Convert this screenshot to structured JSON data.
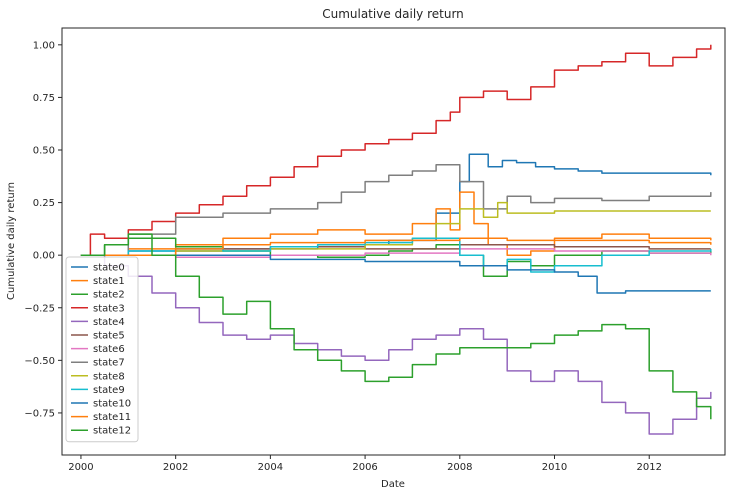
{
  "chart_data": {
    "type": "line",
    "title": "Cumulative daily return",
    "xlabel": "Date",
    "ylabel": "Cumulative daily return",
    "xlim": [
      1999.6,
      2013.6
    ],
    "ylim": [
      -0.95,
      1.08
    ],
    "xticks": [
      2000,
      2002,
      2004,
      2006,
      2008,
      2010,
      2012
    ],
    "xtick_labels": [
      "2000",
      "2002",
      "2004",
      "2006",
      "2008",
      "2010",
      "2012"
    ],
    "yticks": [
      -0.75,
      -0.5,
      -0.25,
      0.0,
      0.25,
      0.5,
      0.75,
      1.0
    ],
    "ytick_labels": [
      "−0.75",
      "−0.50",
      "−0.25",
      "0.00",
      "0.25",
      "0.50",
      "0.75",
      "1.00"
    ],
    "grid": false,
    "legend_position": "lower-left",
    "series": [
      {
        "name": "state0",
        "color": "#1f77b4",
        "x": [
          2000.0,
          2001.0,
          2003.0,
          2005.0,
          2006.5,
          2007.5,
          2008.0,
          2008.2,
          2008.6,
          2008.9,
          2009.2,
          2009.6,
          2010.0,
          2010.5,
          2011.0,
          2012.0,
          2013.3
        ],
        "y": [
          0.0,
          0.02,
          0.03,
          0.05,
          0.07,
          0.2,
          0.35,
          0.48,
          0.42,
          0.45,
          0.44,
          0.42,
          0.41,
          0.4,
          0.39,
          0.39,
          0.38
        ]
      },
      {
        "name": "state1",
        "color": "#ff7f0e",
        "x": [
          2000.0,
          2001.0,
          2002.0,
          2003.0,
          2004.0,
          2005.0,
          2006.0,
          2007.0,
          2007.5,
          2007.8,
          2008.0,
          2008.3,
          2008.6,
          2009.0,
          2009.5,
          2010.0,
          2011.0,
          2012.0,
          2013.3
        ],
        "y": [
          0.0,
          0.03,
          0.05,
          0.08,
          0.1,
          0.12,
          0.1,
          0.15,
          0.22,
          0.12,
          0.3,
          0.15,
          0.05,
          0.0,
          0.02,
          0.08,
          0.1,
          0.08,
          0.07
        ]
      },
      {
        "name": "state2",
        "color": "#2ca02c",
        "x": [
          2000.0,
          2000.5,
          2001.0,
          2002.0,
          2003.0,
          2004.0,
          2005.0,
          2006.0,
          2006.5,
          2007.0,
          2007.5,
          2008.0,
          2008.5,
          2009.0,
          2009.5,
          2010.0,
          2011.0,
          2012.0,
          2013.3
        ],
        "y": [
          0.0,
          0.05,
          0.08,
          0.04,
          0.02,
          0.0,
          -0.01,
          0.0,
          0.02,
          0.03,
          0.05,
          0.0,
          -0.1,
          -0.03,
          -0.05,
          0.0,
          0.02,
          0.01,
          0.02
        ]
      },
      {
        "name": "state3",
        "color": "#d62728",
        "x": [
          2000.0,
          2000.2,
          2000.5,
          2001.0,
          2001.5,
          2002.0,
          2002.5,
          2003.0,
          2003.5,
          2004.0,
          2004.5,
          2005.0,
          2005.5,
          2006.0,
          2006.5,
          2007.0,
          2007.5,
          2007.8,
          2008.0,
          2008.5,
          2009.0,
          2009.5,
          2010.0,
          2010.5,
          2011.0,
          2011.5,
          2012.0,
          2012.5,
          2013.0,
          2013.3
        ],
        "y": [
          0.0,
          0.1,
          0.08,
          0.12,
          0.16,
          0.2,
          0.24,
          0.28,
          0.33,
          0.37,
          0.42,
          0.47,
          0.5,
          0.53,
          0.55,
          0.58,
          0.64,
          0.68,
          0.75,
          0.78,
          0.74,
          0.8,
          0.88,
          0.9,
          0.92,
          0.96,
          0.9,
          0.94,
          0.98,
          1.0
        ]
      },
      {
        "name": "state4",
        "color": "#9467bd",
        "x": [
          2000.0,
          2000.5,
          2001.0,
          2001.5,
          2002.0,
          2002.5,
          2003.0,
          2003.5,
          2004.0,
          2004.5,
          2005.0,
          2005.5,
          2006.0,
          2006.5,
          2007.0,
          2007.5,
          2008.0,
          2008.5,
          2009.0,
          2009.5,
          2010.0,
          2010.5,
          2011.0,
          2011.5,
          2012.0,
          2012.5,
          2013.0,
          2013.3
        ],
        "y": [
          0.0,
          -0.05,
          -0.1,
          -0.18,
          -0.25,
          -0.32,
          -0.38,
          -0.4,
          -0.38,
          -0.42,
          -0.45,
          -0.48,
          -0.5,
          -0.45,
          -0.4,
          -0.38,
          -0.35,
          -0.4,
          -0.55,
          -0.6,
          -0.55,
          -0.6,
          -0.7,
          -0.75,
          -0.85,
          -0.78,
          -0.68,
          -0.65
        ]
      },
      {
        "name": "state5",
        "color": "#8c564b",
        "x": [
          2000.0,
          2002.0,
          2004.0,
          2006.0,
          2008.0,
          2010.0,
          2012.0,
          2013.3
        ],
        "y": [
          0.0,
          0.03,
          0.04,
          0.03,
          0.05,
          0.04,
          0.03,
          0.03
        ]
      },
      {
        "name": "state6",
        "color": "#e377c2",
        "x": [
          2000.0,
          2002.0,
          2004.0,
          2006.0,
          2008.0,
          2010.0,
          2012.0,
          2013.3
        ],
        "y": [
          0.0,
          -0.01,
          0.0,
          0.01,
          0.03,
          0.02,
          0.01,
          0.0
        ]
      },
      {
        "name": "state7",
        "color": "#7f7f7f",
        "x": [
          2000.0,
          2001.0,
          2002.0,
          2003.0,
          2004.0,
          2005.0,
          2005.5,
          2006.0,
          2006.5,
          2007.0,
          2007.5,
          2008.0,
          2008.5,
          2009.0,
          2009.5,
          2010.0,
          2011.0,
          2012.0,
          2013.3
        ],
        "y": [
          0.0,
          0.1,
          0.18,
          0.2,
          0.22,
          0.25,
          0.3,
          0.35,
          0.38,
          0.4,
          0.43,
          0.35,
          0.22,
          0.28,
          0.25,
          0.27,
          0.26,
          0.28,
          0.3
        ]
      },
      {
        "name": "state8",
        "color": "#bcbd22",
        "x": [
          2000.0,
          2002.0,
          2004.0,
          2006.0,
          2007.0,
          2007.5,
          2008.0,
          2008.5,
          2008.8,
          2009.0,
          2010.0,
          2011.0,
          2012.0,
          2013.3
        ],
        "y": [
          0.0,
          0.02,
          0.03,
          0.05,
          0.08,
          0.15,
          0.22,
          0.18,
          0.25,
          0.2,
          0.21,
          0.21,
          0.21,
          0.21
        ]
      },
      {
        "name": "state9",
        "color": "#17becf",
        "x": [
          2000.0,
          2001.0,
          2002.0,
          2003.0,
          2004.0,
          2005.0,
          2006.0,
          2007.0,
          2008.0,
          2008.5,
          2009.0,
          2009.5,
          2010.0,
          2011.0,
          2012.0,
          2013.3
        ],
        "y": [
          0.0,
          0.02,
          0.03,
          0.02,
          0.04,
          0.05,
          0.06,
          0.08,
          0.0,
          -0.05,
          -0.02,
          -0.08,
          -0.05,
          0.0,
          0.02,
          0.03
        ]
      },
      {
        "name": "state10",
        "color": "#1f77b4",
        "x": [
          2000.0,
          2002.0,
          2004.0,
          2006.0,
          2008.0,
          2009.0,
          2010.0,
          2010.5,
          2010.9,
          2011.5,
          2012.0,
          2013.3
        ],
        "y": [
          0.0,
          0.0,
          -0.02,
          -0.03,
          -0.05,
          -0.07,
          -0.08,
          -0.1,
          -0.18,
          -0.17,
          -0.17,
          -0.17
        ]
      },
      {
        "name": "state11",
        "color": "#ff7f0e",
        "x": [
          2000.0,
          2002.0,
          2003.0,
          2004.0,
          2006.0,
          2008.0,
          2009.0,
          2010.0,
          2012.0,
          2013.3
        ],
        "y": [
          0.0,
          0.03,
          0.05,
          0.06,
          0.07,
          0.08,
          0.07,
          0.07,
          0.06,
          0.05
        ]
      },
      {
        "name": "state12",
        "color": "#2ca02c",
        "x": [
          2000.0,
          2000.5,
          2001.0,
          2001.5,
          2002.0,
          2002.5,
          2003.0,
          2003.5,
          2004.0,
          2004.5,
          2005.0,
          2005.5,
          2006.0,
          2006.5,
          2007.0,
          2007.5,
          2008.0,
          2008.5,
          2009.0,
          2009.5,
          2010.0,
          2010.5,
          2011.0,
          2011.5,
          2012.0,
          2012.5,
          2013.0,
          2013.3
        ],
        "y": [
          0.0,
          0.05,
          0.1,
          0.0,
          -0.1,
          -0.2,
          -0.28,
          -0.22,
          -0.35,
          -0.45,
          -0.5,
          -0.55,
          -0.6,
          -0.58,
          -0.52,
          -0.47,
          -0.44,
          -0.44,
          -0.44,
          -0.42,
          -0.38,
          -0.36,
          -0.33,
          -0.35,
          -0.55,
          -0.65,
          -0.72,
          -0.78
        ]
      }
    ]
  }
}
